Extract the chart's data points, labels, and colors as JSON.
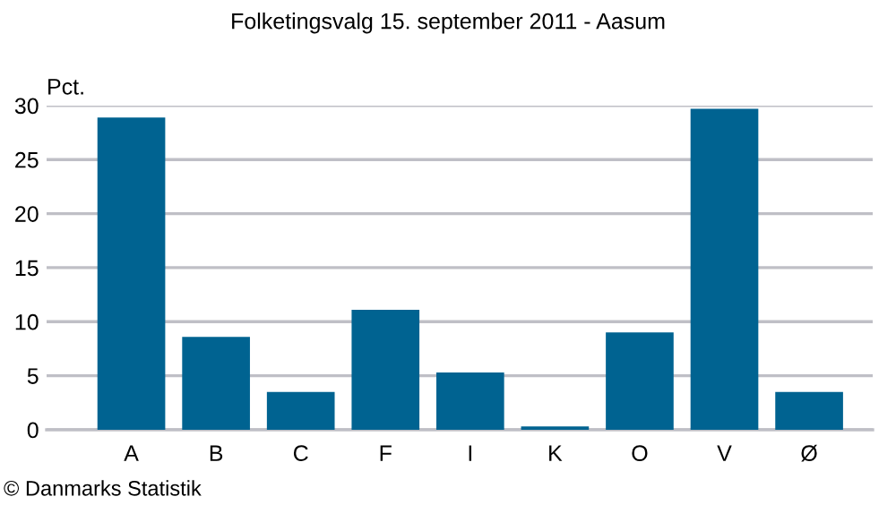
{
  "chart_data": {
    "type": "bar",
    "title": "Folketingsvalg 15. september 2011 - Aasum",
    "ylabel": "Pct.",
    "categories": [
      "A",
      "B",
      "C",
      "F",
      "I",
      "K",
      "O",
      "V",
      "Ø"
    ],
    "values": [
      28.9,
      8.6,
      3.5,
      11.1,
      5.3,
      0.3,
      9.0,
      29.7,
      3.5
    ],
    "color": "#006391",
    "ylim": [
      0,
      30
    ],
    "yticks": [
      0,
      5,
      10,
      15,
      20,
      25,
      30
    ],
    "grid": "y",
    "annotations": [
      "© Danmarks Statistik"
    ]
  }
}
